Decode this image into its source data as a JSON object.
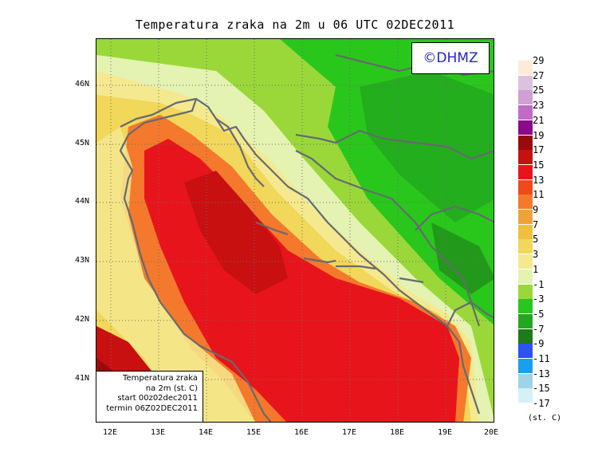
{
  "title": "Temperatura zraka na 2m u 06 UTC 02DEC2011",
  "logo": "©DHMZ",
  "info_box": {
    "line1": "Temperatura zraka",
    "line2": "na 2m (st. C)",
    "line3": "start 00z02dec2011",
    "line4": "termin 06Z02DEC2011"
  },
  "axes": {
    "lat_labels": [
      "46N",
      "45N",
      "44N",
      "43N",
      "42N",
      "41N"
    ],
    "lon_labels": [
      "12E",
      "13E",
      "14E",
      "15E",
      "16E",
      "17E",
      "18E",
      "19E",
      "20E"
    ]
  },
  "legend": {
    "unit": "(st. C)",
    "levels": [
      {
        "label": "29",
        "color": "#fdebd8"
      },
      {
        "label": "27",
        "color": "#dcc3dd"
      },
      {
        "label": "25",
        "color": "#cfa0d3"
      },
      {
        "label": "23",
        "color": "#c06cc6"
      },
      {
        "label": "21",
        "color": "#8a0a8a"
      },
      {
        "label": "19",
        "color": "#9a0a0a"
      },
      {
        "label": "17",
        "color": "#c81010"
      },
      {
        "label": "15",
        "color": "#e8141b"
      },
      {
        "label": "13",
        "color": "#f04a1a"
      },
      {
        "label": "11",
        "color": "#f5792c"
      },
      {
        "label": "9",
        "color": "#f0a238"
      },
      {
        "label": "7",
        "color": "#efc03e"
      },
      {
        "label": "5",
        "color": "#f1d75a"
      },
      {
        "label": "3",
        "color": "#f4e98e"
      },
      {
        "label": "1",
        "color": "#e4f2b2"
      },
      {
        "label": "-1",
        "color": "#9ad83a"
      },
      {
        "label": "-3",
        "color": "#29c71b"
      },
      {
        "label": "-5",
        "color": "#22a81e"
      },
      {
        "label": "-7",
        "color": "#1e7a1a"
      },
      {
        "label": "-9",
        "color": "#2e52f0"
      },
      {
        "label": "-11",
        "color": "#18a0f0"
      },
      {
        "label": "-13",
        "color": "#9fd4e8"
      },
      {
        "label": "-15",
        "color": "#d6f1f6"
      },
      {
        "label": "-17",
        "color": "#ffffff"
      }
    ]
  }
}
